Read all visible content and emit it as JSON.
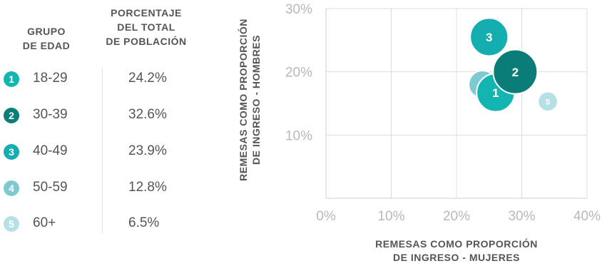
{
  "table": {
    "header_group": [
      "GRUPO",
      "DE EDAD"
    ],
    "header_pct": [
      "PORCENTAJE",
      "DEL TOTAL",
      "DE POBLACIÓN"
    ],
    "rows": [
      {
        "num": "1",
        "age": "18-29",
        "pct": "24.2%",
        "color": "#13b5b1"
      },
      {
        "num": "2",
        "age": "30-39",
        "pct": "32.6%",
        "color": "#0a7d79"
      },
      {
        "num": "3",
        "age": "40-49",
        "pct": "23.9%",
        "color": "#15aeb0"
      },
      {
        "num": "4",
        "age": "50-59",
        "pct": "12.8%",
        "color": "#7fc9d2"
      },
      {
        "num": "5",
        "age": "60+",
        "pct": "6.5%",
        "color": "#b5e1e6"
      }
    ]
  },
  "chart_data": {
    "type": "scatter",
    "xlabel": [
      "REMESAS COMO PROPORCIÓN",
      "DE INGRESO - MUJERES"
    ],
    "ylabel": [
      "REMESAS COMO PROPORCIÓN",
      "DE INGRESO - HOMBRES"
    ],
    "xlim": [
      0,
      40
    ],
    "ylim": [
      0,
      30
    ],
    "xticks": [
      "0%",
      "10%",
      "20%",
      "30%",
      "40%"
    ],
    "yticks": [
      "10%",
      "20%",
      "30%"
    ],
    "grid": true,
    "points": [
      {
        "label": "4",
        "x": 24,
        "y": 18,
        "size": 12.8,
        "color": "#7fc9d2"
      },
      {
        "label": "5",
        "x": 34,
        "y": 15.3,
        "size": 6.5,
        "color": "#b5e1e6"
      },
      {
        "label": "3",
        "x": 25,
        "y": 25.5,
        "size": 23.9,
        "color": "#15aeb0"
      },
      {
        "label": "1",
        "x": 26,
        "y": 16.7,
        "size": 24.2,
        "color": "#13b5b1"
      },
      {
        "label": "2",
        "x": 29,
        "y": 20,
        "size": 32.6,
        "color": "#0a7d79"
      }
    ]
  }
}
